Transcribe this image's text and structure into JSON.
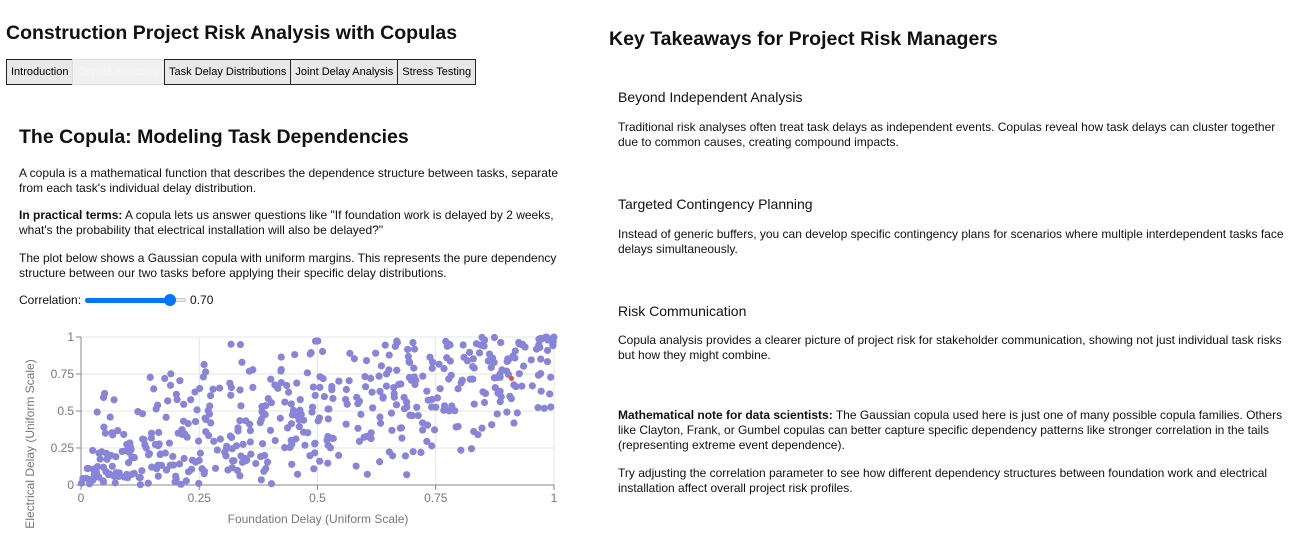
{
  "app": {
    "title": "Construction Project Risk Analysis with Copulas"
  },
  "tabs": [
    {
      "label": "Introduction",
      "active": false
    },
    {
      "label": "Copula Structure",
      "active": true
    },
    {
      "label": "Task Delay Distributions",
      "active": false
    },
    {
      "label": "Joint Delay Analysis",
      "active": false
    },
    {
      "label": "Stress Testing",
      "active": false
    }
  ],
  "copula_section": {
    "title": "The Copula: Modeling Task Dependencies",
    "intro": "A copula is a mathematical function that describes the dependence structure between tasks, separate from each task's individual delay distribution.",
    "practical_label": "In practical terms:",
    "practical_text": " A copula lets us answer questions like \"If foundation work is delayed by 2 weeks, what's the probability that electrical installation will also be delayed?\"",
    "plot_desc": "The plot below shows a Gaussian copula with uniform margins. This represents the pure dependency structure between our two tasks before applying their specific delay distributions.",
    "correlation_label": "Correlation:",
    "correlation_value_text": "0.70",
    "correlation_value": 0.7
  },
  "chart_data": {
    "type": "scatter",
    "title": "",
    "xlabel": "Foundation Delay (Uniform Scale)",
    "ylabel": "Electrical Delay (Uniform Scale)",
    "xlim": [
      0,
      1
    ],
    "ylim": [
      0,
      1
    ],
    "xticks": [
      "0",
      "0.25",
      "0.5",
      "0.75",
      "1"
    ],
    "yticks": [
      "0",
      "0.25",
      "0.5",
      "0.75",
      "1"
    ],
    "grid": true,
    "point_color": "#8884d8",
    "highlight_color": "#e74c3c",
    "highlight_point": [
      0.91,
      0.72
    ],
    "n_points": 500,
    "correlation": 0.7
  },
  "takeaways": {
    "title": "Key Takeaways for Project Risk Managers",
    "items": [
      {
        "heading": "Beyond Independent Analysis",
        "text": "Traditional risk analyses often treat task delays as independent events. Copulas reveal how task delays can cluster together due to common causes, creating compound impacts."
      },
      {
        "heading": "Targeted Contingency Planning",
        "text": "Instead of generic buffers, you can develop specific contingency plans for scenarios where multiple interdependent tasks face delays simultaneously."
      },
      {
        "heading": "Risk Communication",
        "text": "Copula analysis provides a clearer picture of project risk for stakeholder communication, showing not just individual task risks but how they might combine."
      }
    ],
    "math_note_label": "Mathematical note for data scientists:",
    "math_note_text": " The Gaussian copula used here is just one of many possible copula families. Others like Clayton, Frank, or Gumbel copulas can better capture specific dependency patterns like stronger correlation in the tails (representing extreme event dependence).",
    "closing": "Try adjusting the correlation parameter to see how different dependency structures between foundation work and electrical installation affect overall project risk profiles."
  }
}
